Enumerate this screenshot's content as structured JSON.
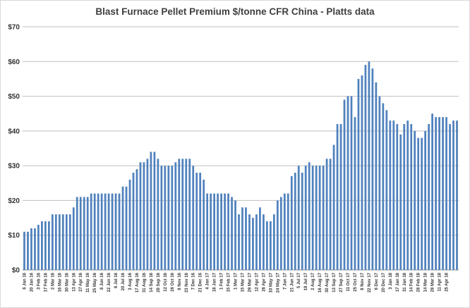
{
  "chart_data": {
    "type": "bar",
    "title": "Blast Furnace Pellet Premium $/tonne CFR China - Platts data",
    "xlabel": "",
    "ylabel": "",
    "ylim": [
      0,
      70
    ],
    "yticks": [
      "$0",
      "$10",
      "$20",
      "$30",
      "$40",
      "$50",
      "$60",
      "$70"
    ],
    "grid": true,
    "legend": "none",
    "bar_color": "#4f81bd",
    "x_tick_labels": [
      "6 Jan 16",
      "20 Jan 16",
      "3 Feb 16",
      "17 Feb 16",
      "2 Mar 16",
      "16 Mar 16",
      "30 Mar 16",
      "13 Apr 16",
      "27 Apr 16",
      "11 May 16",
      "25 May 16",
      "8 Jun 16",
      "22 Jun 16",
      "6 Jul 16",
      "20 Jul 16",
      "3 Aug 16",
      "17 Aug 16",
      "31 Aug 16",
      "14 Sep 16",
      "28 Sep 16",
      "12 Oct 16",
      "26 Oct 16",
      "9 Nov 16",
      "23 Nov 16",
      "7 Dec 16",
      "21 Dec 16",
      "4 Jan 17",
      "18 Jan 17",
      "1 Feb 17",
      "15 Feb 17",
      "1 Mar 17",
      "15 Mar 17",
      "29 Mar 17",
      "12 Apr 17",
      "26 Apr 17",
      "10 May 17",
      "24 May 17",
      "7 Jun 17",
      "21 Jun 17",
      "5 Jul 17",
      "19 Jul 17",
      "2 Aug 17",
      "16 Aug 17",
      "30 Aug 17",
      "13 Sep 17",
      "27 Sep 17",
      "11 Oct 17",
      "25 Oct 17",
      "8 Nov 17",
      "22 Nov 17",
      "6 Dec 17",
      "20 Dec 17",
      "3 Jan 18",
      "17 Jan 18",
      "31 Jan 18",
      "14 Feb 18",
      "28 Feb 18",
      "14 Mar 18",
      "28 Mar 18",
      "11 Apr 18",
      "25 Apr 18"
    ],
    "values": [
      11,
      11,
      12,
      12,
      13,
      14,
      14,
      14,
      16,
      16,
      16,
      16,
      16,
      16,
      18,
      21,
      21,
      21,
      21,
      22,
      22,
      22,
      22,
      22,
      22,
      22,
      22,
      22,
      24,
      24,
      26,
      28,
      29,
      31,
      31,
      32,
      34,
      34,
      32,
      30,
      30,
      30,
      30,
      31,
      32,
      32,
      32,
      32,
      30,
      28,
      28,
      26,
      22,
      22,
      22,
      22,
      22,
      22,
      22,
      21,
      20,
      16,
      18,
      18,
      16,
      15,
      16,
      18,
      16,
      14,
      14,
      16,
      20,
      21,
      22,
      22,
      27,
      28,
      30,
      28,
      30,
      31,
      30,
      30,
      30,
      30,
      32,
      32,
      36,
      42,
      42,
      49,
      50,
      50,
      44,
      55,
      56,
      59,
      60,
      58,
      54,
      50,
      48,
      46,
      43,
      43,
      42,
      39,
      42,
      43,
      42,
      40,
      38,
      38,
      40,
      42,
      45,
      44,
      44,
      44,
      44,
      42,
      43,
      43
    ]
  }
}
